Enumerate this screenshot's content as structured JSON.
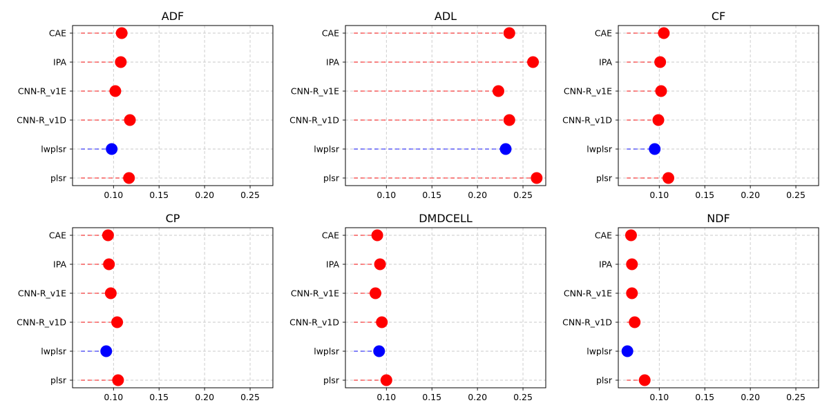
{
  "chart_data": [
    {
      "type": "lollipop",
      "title": "ADF",
      "categories": [
        "CAE",
        "IPA",
        "CNN-R_v1E",
        "CNN-R_v1D",
        "lwplsr",
        "plsr"
      ],
      "values": [
        0.109,
        0.108,
        0.102,
        0.118,
        0.098,
        0.117
      ],
      "point_colors": [
        "#ff0000",
        "#ff0000",
        "#ff0000",
        "#ff0000",
        "#0000ff",
        "#ff0000"
      ],
      "xlim": [
        0.055,
        0.275
      ],
      "xticks": [
        "0.10",
        "0.15",
        "0.20",
        "0.25"
      ],
      "grid": true
    },
    {
      "type": "lollipop",
      "title": "ADL",
      "categories": [
        "CAE",
        "IPA",
        "CNN-R_v1E",
        "CNN-R_v1D",
        "lwplsr",
        "plsr"
      ],
      "values": [
        0.235,
        0.261,
        0.223,
        0.235,
        0.231,
        0.265
      ],
      "point_colors": [
        "#ff0000",
        "#ff0000",
        "#ff0000",
        "#ff0000",
        "#0000ff",
        "#ff0000"
      ],
      "xlim": [
        0.055,
        0.275
      ],
      "xticks": [
        "0.10",
        "0.15",
        "0.20",
        "0.25"
      ],
      "grid": true
    },
    {
      "type": "lollipop",
      "title": "CF",
      "categories": [
        "CAE",
        "IPA",
        "CNN-R_v1E",
        "CNN-R_v1D",
        "lwplsr",
        "plsr"
      ],
      "values": [
        0.105,
        0.101,
        0.102,
        0.099,
        0.095,
        0.11
      ],
      "point_colors": [
        "#ff0000",
        "#ff0000",
        "#ff0000",
        "#ff0000",
        "#0000ff",
        "#ff0000"
      ],
      "xlim": [
        0.055,
        0.275
      ],
      "xticks": [
        "0.10",
        "0.15",
        "0.20",
        "0.25"
      ],
      "grid": true
    },
    {
      "type": "lollipop",
      "title": "CP",
      "categories": [
        "CAE",
        "IPA",
        "CNN-R_v1E",
        "CNN-R_v1D",
        "lwplsr",
        "plsr"
      ],
      "values": [
        0.094,
        0.095,
        0.097,
        0.104,
        0.092,
        0.105
      ],
      "point_colors": [
        "#ff0000",
        "#ff0000",
        "#ff0000",
        "#ff0000",
        "#0000ff",
        "#ff0000"
      ],
      "xlim": [
        0.055,
        0.275
      ],
      "xticks": [
        "0.10",
        "0.15",
        "0.20",
        "0.25"
      ],
      "grid": true
    },
    {
      "type": "lollipop",
      "title": "DMDCELL",
      "categories": [
        "CAE",
        "IPA",
        "CNN-R_v1E",
        "CNN-R_v1D",
        "lwplsr",
        "plsr"
      ],
      "values": [
        0.09,
        0.093,
        0.088,
        0.095,
        0.092,
        0.1
      ],
      "point_colors": [
        "#ff0000",
        "#ff0000",
        "#ff0000",
        "#ff0000",
        "#0000ff",
        "#ff0000"
      ],
      "xlim": [
        0.055,
        0.275
      ],
      "xticks": [
        "0.10",
        "0.15",
        "0.20",
        "0.25"
      ],
      "grid": true
    },
    {
      "type": "lollipop",
      "title": "NDF",
      "categories": [
        "CAE",
        "IPA",
        "CNN-R_v1E",
        "CNN-R_v1D",
        "lwplsr",
        "plsr"
      ],
      "values": [
        0.069,
        0.07,
        0.07,
        0.073,
        0.065,
        0.084
      ],
      "point_colors": [
        "#ff0000",
        "#ff0000",
        "#ff0000",
        "#ff0000",
        "#0000ff",
        "#ff0000"
      ],
      "xlim": [
        0.055,
        0.275
      ],
      "xticks": [
        "0.10",
        "0.15",
        "0.20",
        "0.25"
      ],
      "grid": true
    }
  ]
}
